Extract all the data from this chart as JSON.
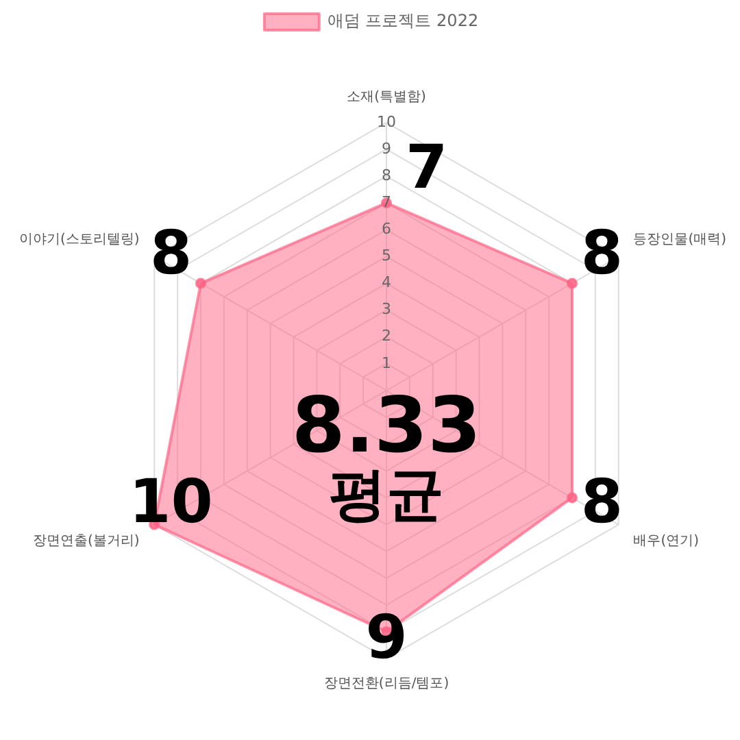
{
  "chart_data": {
    "type": "radar",
    "categories": [
      "소재(특별함)",
      "등장인물(매력)",
      "배우(연기)",
      "장면전환(리듬/템포)",
      "장면연출(볼거리)",
      "이야기(스토리텔링)"
    ],
    "series": [
      {
        "name": "애덤 프로젝트 2022",
        "color": "#ff6384",
        "values": [
          7,
          8,
          8,
          9,
          10,
          8
        ]
      }
    ],
    "ylim": [
      0,
      10
    ],
    "yticks": [
      1,
      2,
      3,
      4,
      5,
      6,
      7,
      8,
      9,
      10
    ],
    "grid": true,
    "legend": "top",
    "marker": "circle",
    "line_style": "solid",
    "data_labels": true,
    "annotations": [
      "8.33",
      "평균"
    ]
  }
}
